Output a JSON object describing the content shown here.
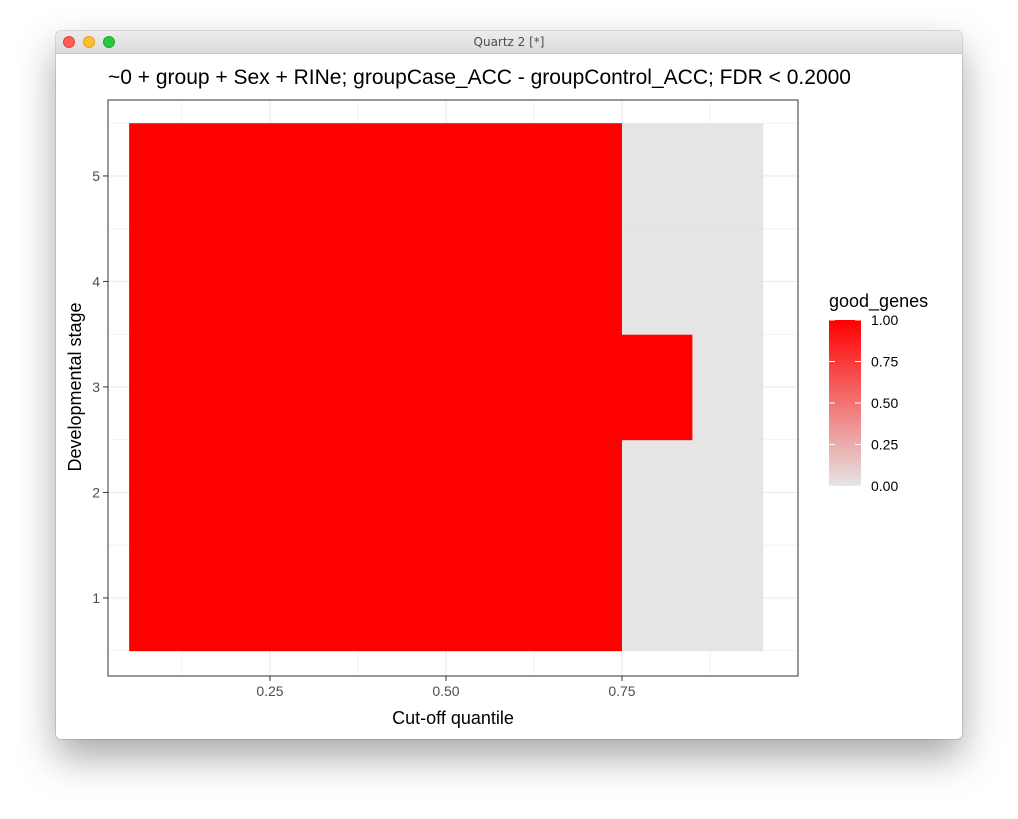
{
  "window": {
    "title": "Quartz 2 [*]"
  },
  "chart_data": {
    "type": "heatmap",
    "title": "~0 + group + Sex + RINe; groupCase_ACC - groupControl_ACC; FDR < 0.2000",
    "xlabel": "Cut-off quantile",
    "ylabel": "Developmental stage",
    "xlim": [
      0.02,
      1.0
    ],
    "ylim": [
      0.26,
      5.72
    ],
    "x_ticks": [
      0.25,
      0.5,
      0.75
    ],
    "x_tick_labels": [
      "0.25",
      "0.50",
      "0.75"
    ],
    "y_ticks": [
      1,
      2,
      3,
      4,
      5
    ],
    "y_tick_labels": [
      "1",
      "2",
      "3",
      "4",
      "5"
    ],
    "grid": true,
    "legend": {
      "title": "good_genes",
      "position": "right",
      "breaks": [
        1.0,
        0.75,
        0.5,
        0.25,
        0.0
      ],
      "labels": [
        "1.00",
        "0.75",
        "0.50",
        "0.25",
        "0.00"
      ],
      "low_color": "#e5e5e5",
      "high_color": "#ff0000"
    },
    "tiles": [
      {
        "xmin": 0.05,
        "xmax": 0.75,
        "stage": 1,
        "good_genes": 1
      },
      {
        "xmin": 0.05,
        "xmax": 0.75,
        "stage": 2,
        "good_genes": 1
      },
      {
        "xmin": 0.05,
        "xmax": 0.75,
        "stage": 3,
        "good_genes": 1
      },
      {
        "xmin": 0.05,
        "xmax": 0.75,
        "stage": 4,
        "good_genes": 1
      },
      {
        "xmin": 0.05,
        "xmax": 0.75,
        "stage": 5,
        "good_genes": 1
      },
      {
        "xmin": 0.75,
        "xmax": 0.95,
        "stage": 1,
        "good_genes": 0
      },
      {
        "xmin": 0.75,
        "xmax": 0.95,
        "stage": 2,
        "good_genes": 0
      },
      {
        "xmin": 0.75,
        "xmax": 0.85,
        "stage": 3,
        "good_genes": 1
      },
      {
        "xmin": 0.85,
        "xmax": 0.95,
        "stage": 3,
        "good_genes": 0
      },
      {
        "xmin": 0.75,
        "xmax": 0.95,
        "stage": 4,
        "good_genes": 0
      },
      {
        "xmin": 0.75,
        "xmax": 0.95,
        "stage": 5,
        "good_genes": 0
      }
    ]
  }
}
